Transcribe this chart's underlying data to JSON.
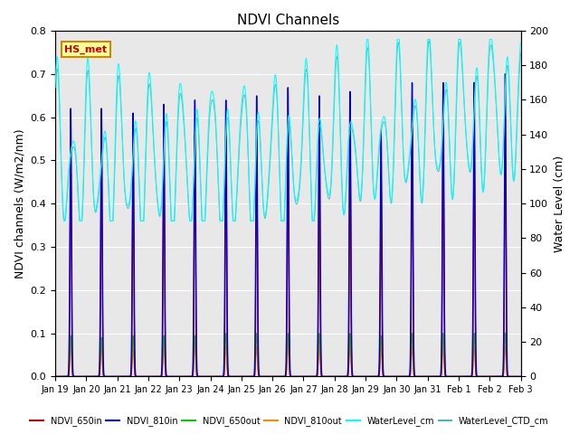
{
  "title": "NDVI Channels",
  "ylabel_left": "NDVI channels (W/m2/nm)",
  "ylabel_right": "Water Level (cm)",
  "ylim_left": [
    0.0,
    0.8
  ],
  "ylim_right": [
    0,
    200
  ],
  "yticks_left": [
    0.0,
    0.1,
    0.2,
    0.3,
    0.4,
    0.5,
    0.6,
    0.7,
    0.8
  ],
  "yticks_right": [
    0,
    20,
    40,
    60,
    80,
    100,
    120,
    140,
    160,
    180,
    200
  ],
  "bg_color": "#e8e8e8",
  "plot_bg": "#dcdcdc",
  "annotation_text": "HS_met",
  "annotation_color": "#cc0000",
  "annotation_bg": "#ffff99",
  "annotation_border": "#cc8800",
  "colors": {
    "NDVI_650in": "#cc0000",
    "NDVI_810in": "#0000cc",
    "NDVI_650out": "#00cc00",
    "NDVI_810out": "#ff8800",
    "WaterLevel_cm": "#00ffff",
    "WaterLevel_CTD_cm": "#44bbbb"
  },
  "day_labels": [
    "Jan 19",
    "Jan 20",
    "Jan 21",
    "Jan 22",
    "Jan 23",
    "Jan 24",
    "Jan 25",
    "Jan 26",
    "Jan 27",
    "Jan 28",
    "Jan 29",
    "Jan 30",
    "Jan 31",
    "Feb 1",
    "Feb 2",
    "Feb 3"
  ]
}
